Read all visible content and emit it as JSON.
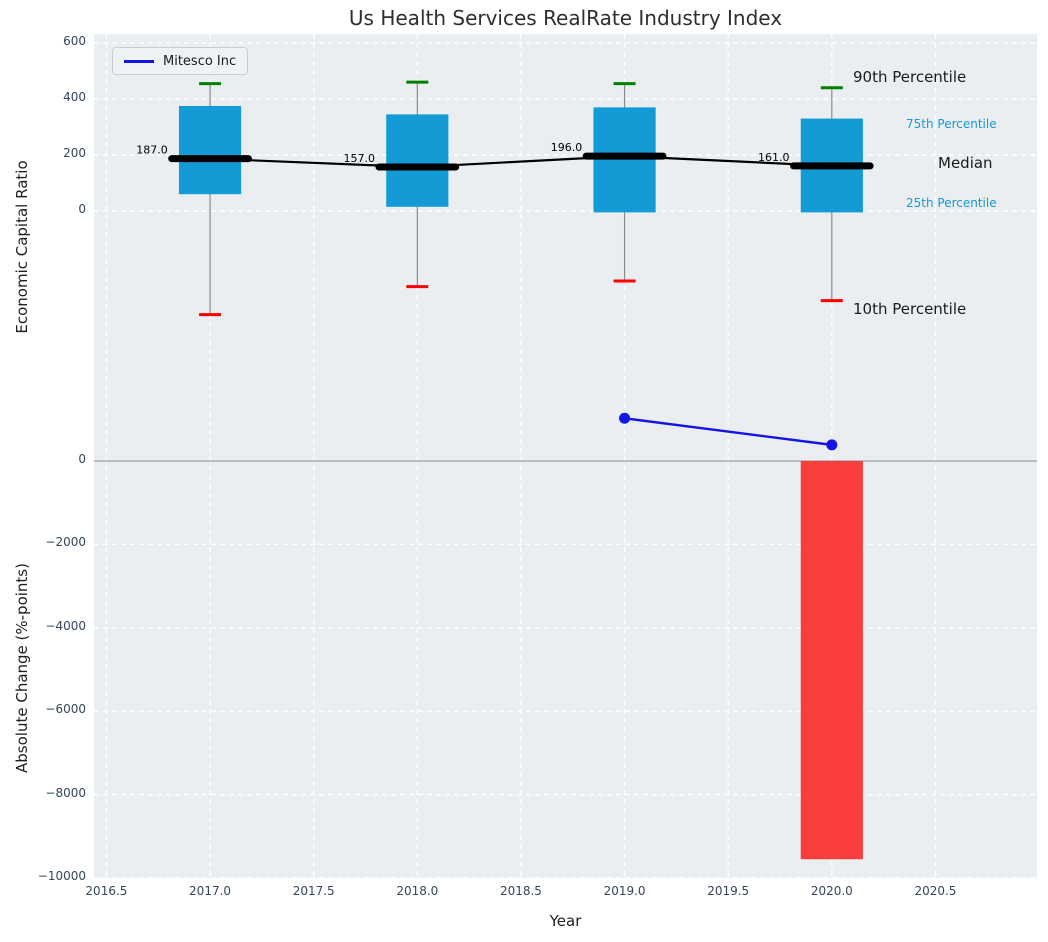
{
  "title": "Us Health Services RealRate Industry Index",
  "legend": {
    "label": "Mitesco Inc"
  },
  "annotations": {
    "p90": "90th Percentile",
    "p75": "75th Percentile",
    "median": "Median",
    "p25": "25th Percentile",
    "p10": "10th Percentile"
  },
  "colors": {
    "box_fill": "#129BD5",
    "percentile_text": "#1599D3",
    "median_line": "#000000",
    "p90_cap": "#008000",
    "p10_cap": "#FF0000",
    "whisker": "#8a8a8a",
    "bar_fill": "#FA3E3E",
    "series_line": "#1414E6",
    "zero_line": "#AAAAAA",
    "plot_background": "#EBEEF0",
    "grid": "#FFFFFF",
    "tick_text": "#36455C"
  },
  "chart_data": [
    {
      "type": "box",
      "ylabel": "Economic Capital Ratio",
      "x": [
        2017,
        2018,
        2019,
        2020
      ],
      "whisker_high_90th": [
        455,
        460,
        455,
        440
      ],
      "box_top_75th": [
        375,
        345,
        370,
        330
      ],
      "median": [
        187.0,
        157.0,
        196.0,
        161.0
      ],
      "box_bottom_25th": [
        60,
        15,
        -5,
        -5
      ],
      "whisker_low_10th": [
        -370,
        -270,
        -250,
        -320
      ],
      "box_width": 0.3,
      "median_bar_width": 0.37,
      "series": [
        {
          "name": "Mitesco Inc",
          "x": [
            2019,
            2020
          ],
          "y": [
            -740,
            -835
          ]
        }
      ],
      "yticks": [
        600,
        400,
        200,
        0
      ],
      "ylim": [
        -889,
        632
      ],
      "grid": true,
      "legend_position": "upper left"
    },
    {
      "type": "bar",
      "ylabel": "Absolute Change (%-points)",
      "xlabel": "Year",
      "x": [
        2020
      ],
      "values": [
        -9550
      ],
      "bar_width": 0.3,
      "yticks": [
        0,
        -2000,
        -4000,
        -6000,
        -8000,
        -10000
      ],
      "ylim": [
        -10000,
        0
      ],
      "xticks": [
        2016.5,
        2017.0,
        2017.5,
        2018.0,
        2018.5,
        2019.0,
        2019.5,
        2020.0,
        2020.5
      ],
      "xlim": [
        2016.44,
        2020.99
      ],
      "grid": true
    }
  ]
}
